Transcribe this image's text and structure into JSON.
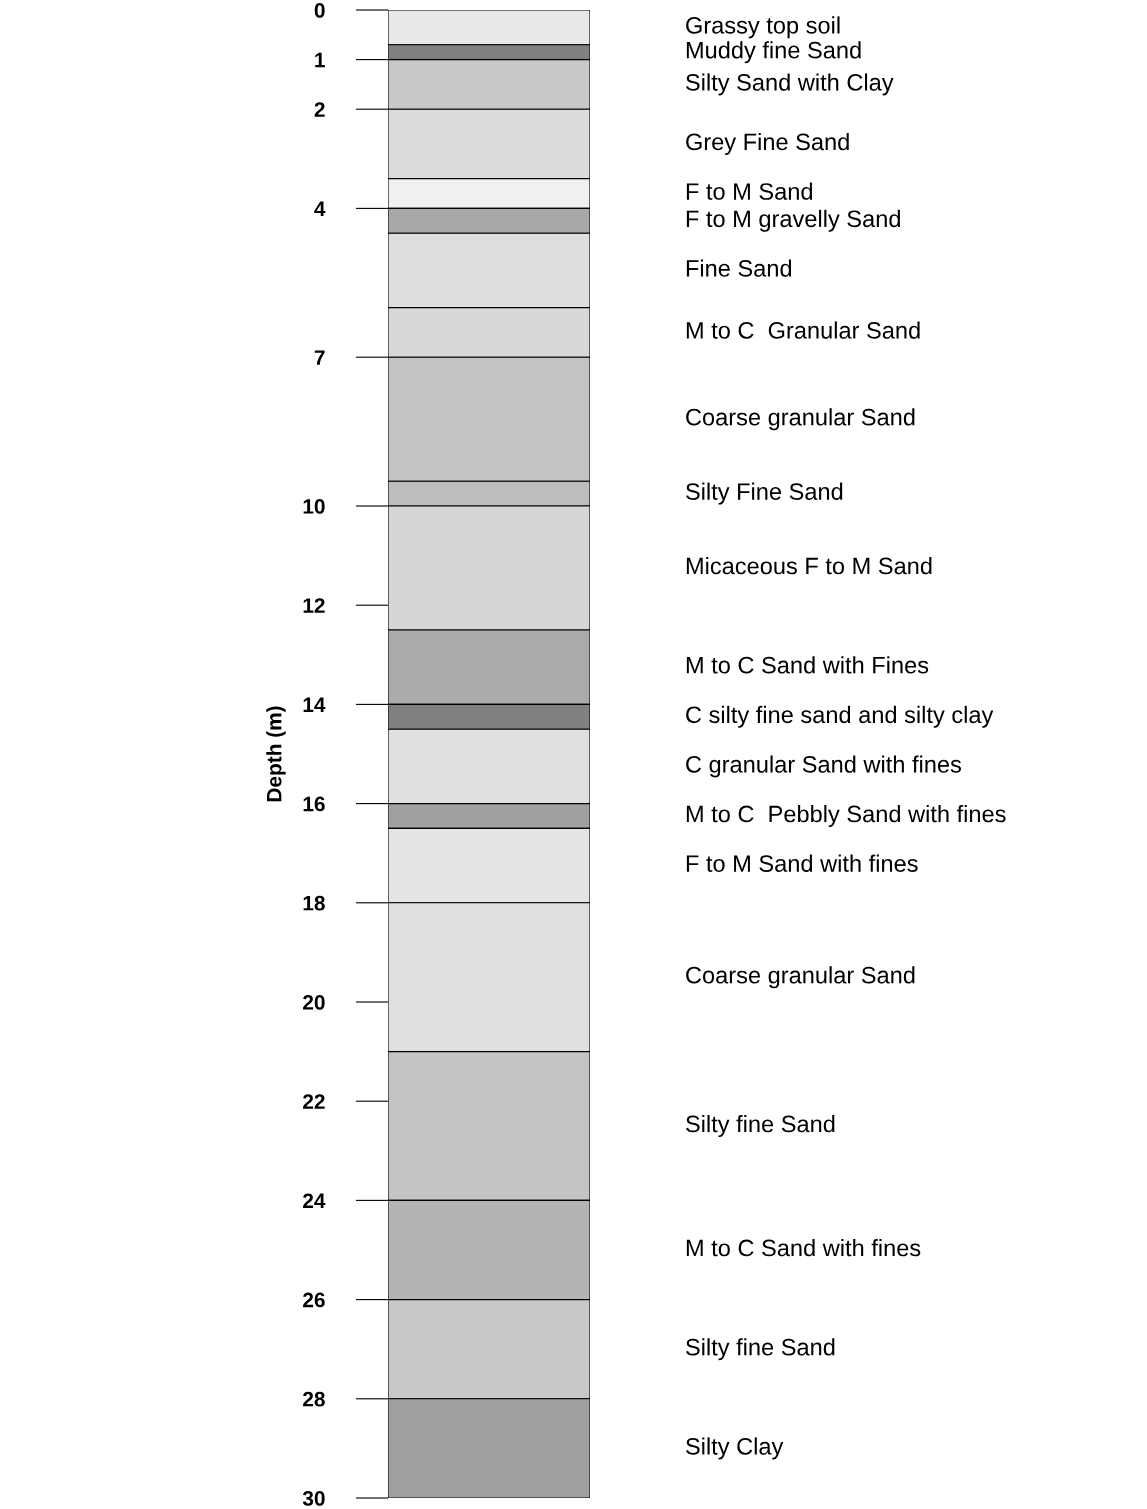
{
  "chart_data": {
    "type": "bar",
    "stacked": true,
    "ylabel": "Depth (m)",
    "categories": [
      null
    ],
    "ylim": [
      30,
      0
    ],
    "yticks": [
      0,
      1,
      2,
      4,
      7,
      10,
      12,
      14,
      16,
      18,
      20,
      22,
      24,
      26,
      28,
      30
    ],
    "grid": false,
    "tick_labels": "y",
    "series": [
      {
        "name": "Grassy top soil",
        "color": "#e8e8e8",
        "values": [
          0.7
        ]
      },
      {
        "name": "Muddy fine Sand",
        "color": "#808080",
        "values": [
          0.3
        ]
      },
      {
        "name": "Silty Sand with Clay",
        "color": "#c8c8c8",
        "values": [
          1.0
        ]
      },
      {
        "name": "Grey Fine Sand",
        "color": "#dcdcdc",
        "values": [
          1.4
        ]
      },
      {
        "name": "F to M Sand",
        "color": "#f0f0f0",
        "values": [
          0.6
        ]
      },
      {
        "name": "F to M gravelly Sand",
        "color": "#a8a8a8",
        "values": [
          0.5
        ]
      },
      {
        "name": "Fine Sand",
        "color": "#dedede",
        "values": [
          1.5
        ]
      },
      {
        "name": "M to C  Granular Sand",
        "color": "#d8d8d8",
        "values": [
          1.0
        ]
      },
      {
        "name": "Coarse granular Sand",
        "color": "#c4c4c4",
        "values": [
          2.5
        ]
      },
      {
        "name": "Silty Fine Sand",
        "color": "#bdbdbd",
        "values": [
          0.5
        ]
      },
      {
        "name": "Micaceous F to M Sand",
        "color": "#d6d6d6",
        "values": [
          2.5
        ]
      },
      {
        "name": "M to C Sand with Fines",
        "color": "#ababab",
        "values": [
          1.5
        ]
      },
      {
        "name": "C silty fine sand and silty clay",
        "color": "#808080",
        "values": [
          0.5
        ]
      },
      {
        "name": "C granular Sand with fines",
        "color": "#e0e0e0",
        "values": [
          1.5
        ]
      },
      {
        "name": "M to C  Pebbly Sand with fines",
        "color": "#a0a0a0",
        "values": [
          0.5
        ]
      },
      {
        "name": "F to M Sand with fines",
        "color": "#e4e4e4",
        "values": [
          1.5
        ]
      },
      {
        "name": "Coarse granular Sand",
        "color": "#e0e0e0",
        "values": [
          3.0
        ]
      },
      {
        "name": "Silty fine Sand",
        "color": "#c4c4c4",
        "values": [
          3.0
        ]
      },
      {
        "name": "M to C Sand with fines",
        "color": "#b4b4b4",
        "values": [
          2.0
        ]
      },
      {
        "name": "Silty fine Sand",
        "color": "#c8c8c8",
        "values": [
          2.0
        ]
      },
      {
        "name": "Silty Clay",
        "color": "#a0a0a0",
        "values": [
          2.0
        ]
      }
    ]
  }
}
